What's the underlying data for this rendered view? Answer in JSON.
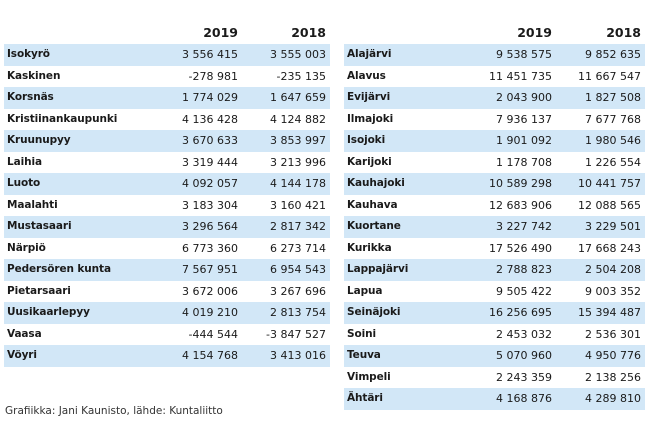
{
  "year_a": "2019",
  "year_b": "2018",
  "left_rows": [
    {
      "name": "Isokyrö",
      "y2019": "3 556 415",
      "y2018": "3 555 003"
    },
    {
      "name": "Kaskinen",
      "y2019": "-278 981",
      "y2018": "-235 135"
    },
    {
      "name": "Korsnäs",
      "y2019": "1 774 029",
      "y2018": "1 647 659"
    },
    {
      "name": "Kristiinankaupunki",
      "y2019": "4 136 428",
      "y2018": "4 124 882"
    },
    {
      "name": "Kruunupyy",
      "y2019": "3 670 633",
      "y2018": "3 853 997"
    },
    {
      "name": "Laihia",
      "y2019": "3 319 444",
      "y2018": "3 213 996"
    },
    {
      "name": "Luoto",
      "y2019": "4 092 057",
      "y2018": "4 144 178"
    },
    {
      "name": "Maalahti",
      "y2019": "3 183 304",
      "y2018": "3 160 421"
    },
    {
      "name": "Mustasaari",
      "y2019": "3 296 564",
      "y2018": "2 817 342"
    },
    {
      "name": "Närpiö",
      "y2019": "6 773 360",
      "y2018": "6 273 714"
    },
    {
      "name": "Pedersören kunta",
      "y2019": "7 567 951",
      "y2018": "6 954 543"
    },
    {
      "name": "Pietarsaari",
      "y2019": "3 672 006",
      "y2018": "3 267 696"
    },
    {
      "name": "Uusikaarlepyy",
      "y2019": "4 019 210",
      "y2018": "2 813 754"
    },
    {
      "name": "Vaasa",
      "y2019": "-444 544",
      "y2018": "-3 847 527"
    },
    {
      "name": "Vöyri",
      "y2019": "4 154 768",
      "y2018": "3 413 016"
    }
  ],
  "right_rows": [
    {
      "name": "Alajärvi",
      "y2019": "9 538 575",
      "y2018": "9 852 635"
    },
    {
      "name": "Alavus",
      "y2019": "11 451 735",
      "y2018": "11 667 547"
    },
    {
      "name": "Evijärvi",
      "y2019": "2 043 900",
      "y2018": "1 827 508"
    },
    {
      "name": "Ilmajoki",
      "y2019": "7 936 137",
      "y2018": "7 677 768"
    },
    {
      "name": "Isojoki",
      "y2019": "1 901 092",
      "y2018": "1 980 546"
    },
    {
      "name": "Karijoki",
      "y2019": "1 178 708",
      "y2018": "1 226 554"
    },
    {
      "name": "Kauhajoki",
      "y2019": "10 589 298",
      "y2018": "10 441 757"
    },
    {
      "name": "Kauhava",
      "y2019": "12 683 906",
      "y2018": "12 088 565"
    },
    {
      "name": "Kuortane",
      "y2019": "3 227 742",
      "y2018": "3 229 501"
    },
    {
      "name": "Kurikka",
      "y2019": "17 526 490",
      "y2018": "17 668 243"
    },
    {
      "name": "Lappajärvi",
      "y2019": "2 788 823",
      "y2018": "2 504 208"
    },
    {
      "name": "Lapua",
      "y2019": "9 505 422",
      "y2018": "9 003 352"
    },
    {
      "name": "Seinäjoki",
      "y2019": "16 256 695",
      "y2018": "15 394 487"
    },
    {
      "name": "Soini",
      "y2019": "2 453 032",
      "y2018": "2 536 301"
    },
    {
      "name": "Teuva",
      "y2019": "5 070 960",
      "y2018": "4 950 776"
    },
    {
      "name": "Vimpeli",
      "y2019": "2 243 359",
      "y2018": "2 138 256"
    },
    {
      "name": "Ähtäri",
      "y2019": "4 168 876",
      "y2018": "4 289 810"
    }
  ],
  "credit": "Grafiikka: Jani Kaunisto, lähde: Kuntaliitto",
  "colors": {
    "stripe": "#d2e7f7"
  }
}
